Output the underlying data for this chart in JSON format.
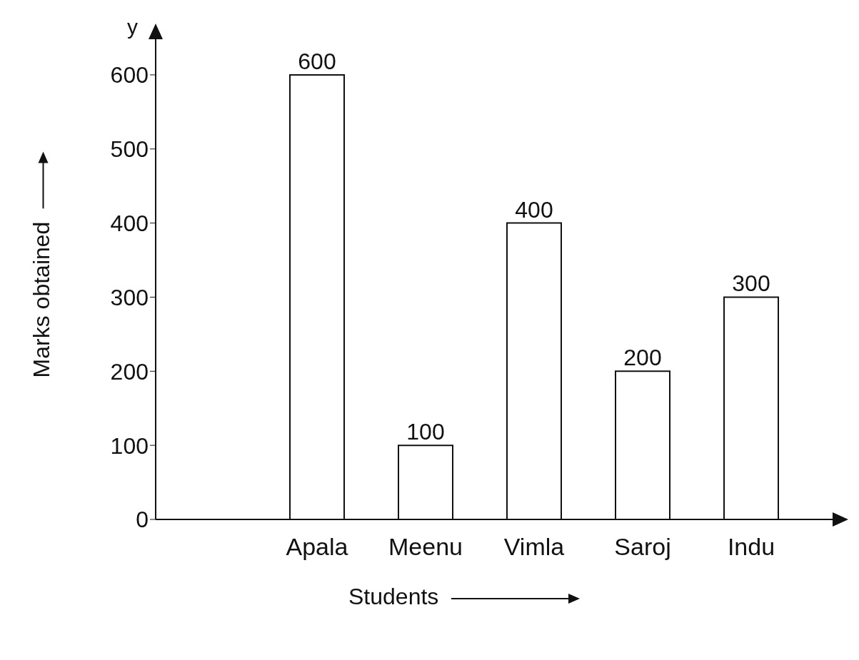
{
  "chart_data": {
    "type": "bar",
    "categories": [
      "Apala",
      "Meenu",
      "Vimla",
      "Saroj",
      "Indu"
    ],
    "values": [
      600,
      100,
      400,
      200,
      300
    ],
    "color": "#ffffff",
    "ylim": [
      0,
      650
    ],
    "yticks": [
      0,
      100,
      200,
      300,
      400,
      500,
      600
    ],
    "data_labels": true,
    "xlabel": "Students",
    "ylabel": "Marks obtained",
    "annotations": [
      "y"
    ]
  }
}
